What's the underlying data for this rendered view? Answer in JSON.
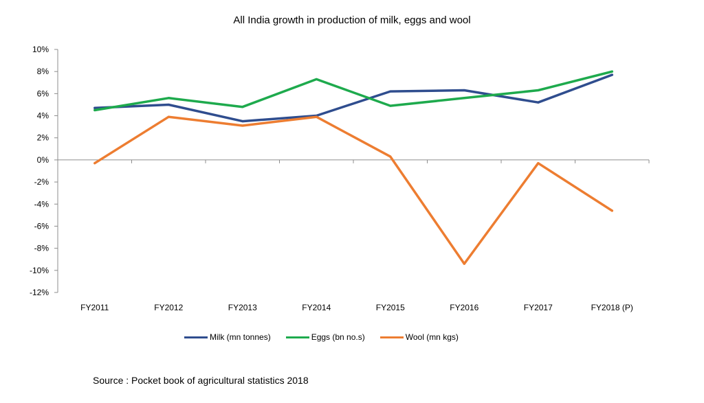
{
  "chart_data": {
    "type": "line",
    "title": "All India growth in production of milk, eggs and wool",
    "xlabel": "",
    "ylabel": "",
    "categories": [
      "FY2011",
      "FY2012",
      "FY2013",
      "FY2014",
      "FY2015",
      "FY2016",
      "FY2017",
      "FY2018 (P)"
    ],
    "ylim": [
      -12,
      10
    ],
    "yticks": [
      10,
      8,
      6,
      4,
      2,
      0,
      -2,
      -4,
      -6,
      -8,
      -10,
      -12
    ],
    "ytick_labels": [
      "10%",
      "8%",
      "6%",
      "4%",
      "2%",
      "0%",
      "-2%",
      "-4%",
      "-6%",
      "-8%",
      "-10%",
      "-12%"
    ],
    "grid": false,
    "legend_position": "bottom",
    "series": [
      {
        "name": "Milk (mn tonnes)",
        "color": "#2F4D8E",
        "values": [
          4.7,
          5.0,
          3.5,
          4.0,
          6.2,
          6.3,
          5.2,
          7.7
        ]
      },
      {
        "name": "Eggs (bn no.s)",
        "color": "#1EAA4D",
        "values": [
          4.5,
          5.6,
          4.8,
          7.3,
          4.9,
          5.6,
          6.3,
          8.0
        ]
      },
      {
        "name": "Wool (mn kgs)",
        "color": "#ED7D31",
        "values": [
          -0.3,
          3.9,
          3.1,
          3.9,
          0.3,
          -9.4,
          -0.3,
          -4.6
        ]
      }
    ]
  },
  "footer": {
    "source": "Source : Pocket book of agricultural statistics 2018"
  }
}
